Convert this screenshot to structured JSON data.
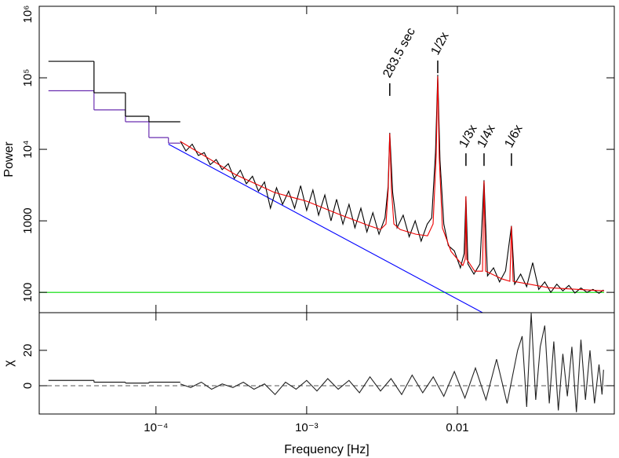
{
  "chart_data": [
    {
      "type": "line",
      "y_label": "Power",
      "xscale": "log",
      "yscale": "log",
      "xlim": [
        1.68e-05,
        0.11
      ],
      "ylim": [
        52,
        1000000
      ],
      "xticks": [
        0.0001,
        0.001,
        0.01
      ],
      "yticks": [
        {
          "value": 1000000,
          "label": "10⁶"
        },
        {
          "value": 100000,
          "label": "10⁵"
        },
        {
          "value": 10000,
          "label": "10⁴"
        },
        1000,
        100
      ],
      "series": [
        {
          "color": "#00dd00",
          "x": [
            1.68e-05,
            0.0942
          ],
          "values": [
            100,
            100
          ]
        },
        {
          "color": "#0000ff",
          "x": [
            0.000121,
            0.0147
          ],
          "values": [
            11800,
            52
          ]
        },
        {
          "color": "#6a2fb0",
          "bins": [
            1.934e-05,
            3.88e-05,
            6.27e-05,
            8.98e-05,
            0.000121,
            0.000145
          ],
          "values": [
            66000,
            35600,
            24300,
            14600,
            12200
          ]
        },
        {
          "color": "#000000",
          "bins": [
            1.934e-05,
            3.88e-05,
            6.27e-05,
            8.98e-05,
            0.000145
          ],
          "values": [
            170000,
            61800,
            29000,
            24300
          ]
        },
        {
          "color": "#000000",
          "x": [
            0.000145,
            0.000158,
            0.000174,
            0.000191,
            0.000209,
            0.000229,
            0.000251,
            0.000275,
            0.000302,
            0.000331,
            0.000363,
            0.000398,
            0.000437,
            0.000479,
            0.000525,
            0.000575,
            0.000631,
            0.000692,
            0.000759,
            0.000832,
            0.000912,
            0.001,
            0.0011,
            0.0012,
            0.00132,
            0.00145,
            0.00158,
            0.00174,
            0.00191,
            0.00209,
            0.00229,
            0.00251,
            0.00275,
            0.00302,
            0.00331,
            0.00347,
            0.00356,
            0.00372,
            0.00398,
            0.00437,
            0.00479,
            0.00525,
            0.00575,
            0.00631,
            0.00676,
            0.00716,
            0.00741,
            0.00767,
            0.00813,
            0.00871,
            0.00955,
            0.01047,
            0.01109,
            0.0114,
            0.01175,
            0.01288,
            0.01413,
            0.01503,
            0.01585,
            0.01738,
            0.01905,
            0.02089,
            0.02285,
            0.02399,
            0.0263,
            0.02884,
            0.03162,
            0.03467,
            0.03802,
            0.04169,
            0.04571,
            0.05012,
            0.05495,
            0.06026,
            0.06607,
            0.07244,
            0.07943,
            0.0871,
            0.09333
          ],
          "values": [
            13000,
            9500,
            11800,
            8200,
            9000,
            6100,
            7200,
            5200,
            6300,
            3900,
            5100,
            3300,
            4200,
            2600,
            3500,
            1500,
            2900,
            1700,
            2600,
            1500,
            3100,
            1400,
            2700,
            1200,
            2300,
            1000,
            2000,
            900,
            1700,
            800,
            1500,
            700,
            1300,
            650,
            1100,
            3000,
            17000,
            2500,
            800,
            1200,
            600,
            1000,
            520,
            900,
            1100,
            9000,
            110000,
            7000,
            900,
            450,
            380,
            220,
            350,
            2200,
            250,
            180,
            250,
            3700,
            170,
            220,
            140,
            200,
            850,
            130,
            180,
            120,
            260,
            110,
            140,
            100,
            130,
            105,
            125,
            98,
            115,
            100,
            110,
            97,
            108
          ]
        },
        {
          "color": "#ee0000",
          "x": [
            0.000145,
            0.000336,
            0.000611,
            0.001,
            0.0016,
            0.00258,
            0.00309,
            0.00336,
            0.00348,
            0.00356,
            0.00365,
            0.00379,
            0.00417,
            0.0053,
            0.00634,
            0.0069,
            0.00723,
            0.00741,
            0.00758,
            0.00796,
            0.00908,
            0.01087,
            0.01127,
            0.0114,
            0.01155,
            0.01303,
            0.01469,
            0.01503,
            0.0154,
            0.0198,
            0.0223,
            0.02285,
            0.02344,
            0.0406,
            0.0942
          ],
          "values": [
            12900,
            4450,
            2490,
            1880,
            1260,
            859,
            757,
            904,
            2820,
            16600,
            2820,
            904,
            757,
            650,
            618,
            904,
            7760,
            105000,
            7760,
            797,
            373,
            237,
            290,
            2200,
            290,
            198,
            198,
            3600,
            198,
            154,
            143,
            840,
            143,
            116,
            105
          ]
        }
      ],
      "annotations": [
        {
          "text": "283.5 sec",
          "x": 0.00356,
          "y": 50500
        },
        {
          "text": "1/2x",
          "x": 0.00741,
          "y": 105000
        },
        {
          "text": "1/3x",
          "x": 0.0114,
          "y": 5300
        },
        {
          "text": "1/4x",
          "x": 0.01503,
          "y": 5300
        },
        {
          "text": "1/6x",
          "x": 0.02285,
          "y": 5300
        }
      ]
    },
    {
      "type": "line",
      "y_label": "χ",
      "x_label": "Frequency [Hz]",
      "xscale": "log",
      "zero_line": true,
      "xlim": [
        1.68e-05,
        0.11
      ],
      "ylim": [
        -16,
        41.3
      ],
      "xticks": [
        {
          "value": 0.0001,
          "label": "10⁻⁴"
        },
        {
          "value": 0.001,
          "label": "10⁻³"
        },
        0.01
      ],
      "yticks": [
        0,
        20
      ],
      "series": [
        {
          "color": "#222222",
          "bins": [
            1.934e-05,
            3.88e-05,
            6.27e-05,
            8.98e-05,
            0.000145
          ],
          "values": [
            3,
            2,
            1.5,
            2
          ]
        },
        {
          "color": "#222222",
          "x": [
            0.000145,
            0.00017,
            0.0002,
            0.000234,
            0.000275,
            0.000324,
            0.00038,
            0.000447,
            0.000525,
            0.000617,
            0.000724,
            0.000851,
            0.001,
            0.00117,
            0.00138,
            0.00162,
            0.00191,
            0.00224,
            0.00263,
            0.00309,
            0.00363,
            0.00427,
            0.00501,
            0.00589,
            0.00692,
            0.00813,
            0.00955,
            0.01122,
            0.01318,
            0.01549,
            0.0182,
            0.02138,
            0.02512,
            0.02692,
            0.02884,
            0.0309,
            0.03311,
            0.03548,
            0.03802,
            0.04074,
            0.04365,
            0.04677,
            0.05012,
            0.0537,
            0.05754,
            0.06166,
            0.06607,
            0.07079,
            0.07586,
            0.08128,
            0.0871,
            0.0912,
            0.09333
          ],
          "values": [
            1,
            -1,
            2,
            -2,
            1,
            -1,
            2,
            -2,
            1,
            -5,
            2,
            -2,
            3,
            -3,
            4,
            -2,
            3,
            -4,
            5,
            -3,
            4,
            -5,
            6,
            -4,
            5,
            -6,
            8,
            -7,
            10,
            -8,
            15,
            -10,
            20,
            28,
            -12,
            41,
            -8,
            22,
            34,
            -10,
            25,
            -14,
            18,
            -6,
            22,
            -15,
            26,
            -8,
            20,
            -10,
            12,
            -5,
            9
          ]
        }
      ]
    }
  ]
}
